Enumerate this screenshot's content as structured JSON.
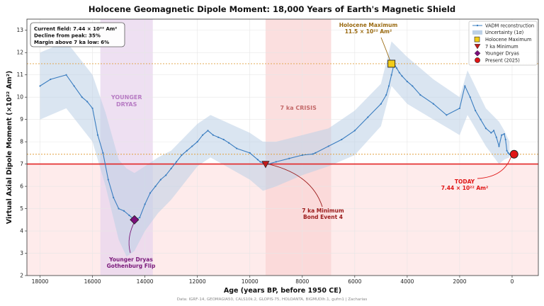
{
  "chart_data": {
    "type": "line",
    "title": "Holocene Geomagnetic Dipole Moment: 18,000 Years of Earth's Magnetic Shield",
    "xlabel": "Age (years BP, before 1950 CE)",
    "ylabel": "Virtual Axial Dipole Moment (×10²² Am²)",
    "xlim": [
      18500,
      -1000
    ],
    "ylim": [
      2,
      13.5
    ],
    "x_reversed": true,
    "xticks": [
      18000,
      16000,
      14000,
      12000,
      10000,
      8000,
      6000,
      4000,
      2000,
      0
    ],
    "yticks": [
      2,
      3,
      4,
      5,
      6,
      7,
      8,
      9,
      10,
      11,
      12,
      13
    ],
    "grid": true,
    "legend_position": "top-right",
    "source_note": "Data: IGRF-14, GEOMAGIA50, CALS10k.2, GLOPIS-75, HOLOANTA, BIGMUDIh.1, gufm1 | Zacharias",
    "info_box": [
      "Current field: 7.44 × 10²² Am²",
      "Decline from peak: 35%",
      "Margin above 7 ka low: 6%"
    ],
    "colors": {
      "line": "#3a7dc0",
      "band": "#bcd0e6",
      "threshold": "#e32525",
      "younger_dryas_band": "#e8d5ee",
      "crisis_band": "#fad4d4",
      "holocene_max": "#f2cc18",
      "min_7ka": "#c11b1b",
      "younger_dryas_marker": "#7a0e7a",
      "present": "#e01515"
    },
    "series": [
      {
        "name": "VADM reconstruction",
        "x": [
          18000,
          17600,
          17000,
          16700,
          16400,
          16200,
          16000,
          15800,
          15600,
          15400,
          15200,
          15000,
          14800,
          14600,
          14400,
          14200,
          14000,
          13800,
          13600,
          13400,
          13200,
          13000,
          12800,
          12600,
          12400,
          12200,
          12000,
          11800,
          11600,
          11400,
          11200,
          11000,
          10800,
          10500,
          10000,
          9700,
          9600,
          9500,
          9400,
          9300,
          9000,
          8500,
          8000,
          7600,
          7500,
          7000,
          6500,
          6000,
          5500,
          5000,
          4800,
          4700,
          4600,
          4500,
          4400,
          4300,
          4200,
          4000,
          3800,
          3500,
          3000,
          2500,
          2000,
          1800,
          1600,
          1400,
          1200,
          1000,
          800,
          700,
          600,
          500,
          400,
          300,
          250,
          200,
          150,
          100,
          75
        ],
        "y": [
          10.5,
          10.8,
          11.0,
          10.5,
          10.0,
          9.8,
          9.5,
          8.3,
          7.5,
          6.3,
          5.5,
          5.0,
          4.9,
          4.7,
          4.5,
          4.6,
          5.2,
          5.7,
          6.0,
          6.3,
          6.5,
          6.8,
          7.1,
          7.4,
          7.6,
          7.8,
          8.0,
          8.3,
          8.5,
          8.3,
          8.2,
          8.1,
          7.95,
          7.7,
          7.5,
          7.2,
          7.1,
          7.05,
          7.0,
          7.0,
          7.1,
          7.25,
          7.4,
          7.45,
          7.5,
          7.8,
          8.1,
          8.5,
          9.1,
          9.7,
          10.1,
          10.5,
          11.0,
          11.5,
          11.3,
          11.1,
          10.95,
          10.7,
          10.5,
          10.1,
          9.7,
          9.2,
          9.5,
          10.5,
          10.0,
          9.4,
          9.0,
          8.6,
          8.4,
          8.5,
          8.2,
          7.8,
          8.3,
          8.35,
          8.1,
          7.6,
          7.5,
          7.44,
          7.44
        ]
      },
      {
        "name": "Uncertainty (1σ)",
        "x": [
          18000,
          17000,
          16000,
          15500,
          15000,
          14700,
          14400,
          14000,
          13500,
          13000,
          12000,
          11500,
          10000,
          9500,
          9000,
          8000,
          7000,
          6000,
          5000,
          4600,
          4000,
          3000,
          2000,
          1700,
          1000,
          500,
          300,
          100
        ],
        "lower": [
          9.0,
          9.5,
          8.0,
          6.0,
          3.6,
          2.85,
          3.1,
          4.0,
          4.8,
          5.4,
          6.9,
          7.3,
          6.3,
          5.8,
          6.0,
          6.5,
          6.9,
          7.4,
          8.7,
          10.5,
          9.7,
          9.0,
          8.3,
          9.2,
          7.8,
          7.0,
          7.2,
          7.3
        ],
        "upper": [
          12.0,
          12.5,
          11.0,
          9.3,
          7.2,
          6.8,
          6.6,
          6.9,
          7.3,
          7.6,
          8.8,
          9.2,
          8.4,
          8.0,
          8.0,
          8.3,
          8.6,
          9.4,
          10.6,
          12.5,
          11.8,
          10.8,
          10.0,
          11.2,
          9.5,
          8.9,
          8.5,
          8.0
        ]
      }
    ],
    "markers": [
      {
        "name": "Holocene Maximum",
        "x": 4600,
        "y": 11.5,
        "label": [
          "Holocene Maximum",
          "11.5 × 10²² Am²"
        ]
      },
      {
        "name": "7 ka Minimum",
        "x": 9400,
        "y": 7.0,
        "label": [
          "7 ka Minimum",
          "Bond Event 4"
        ]
      },
      {
        "name": "Younger Dryas",
        "x": 14400,
        "y": 4.5,
        "label": [
          "Younger Dryas",
          "Gothenburg Flip"
        ]
      },
      {
        "name": "Present (2025)",
        "x": -75,
        "y": 7.44,
        "label": [
          "TODAY",
          "7.44 × 10²² Am²"
        ]
      }
    ],
    "reference_lines": [
      {
        "y": 7.0,
        "style": "solid",
        "color": "#e32525"
      },
      {
        "y": 7.44,
        "style": "dotted",
        "color": "#e0a040"
      },
      {
        "y": 11.5,
        "style": "dotted",
        "color": "#e0a040"
      }
    ],
    "shaded_regions": [
      {
        "label": [
          "YOUNGER",
          "DRYAS"
        ],
        "x_from": 15700,
        "x_to": 13700
      },
      {
        "label": [
          "7 ka CRISIS"
        ],
        "x_from": 9400,
        "x_to": 6900
      }
    ]
  }
}
